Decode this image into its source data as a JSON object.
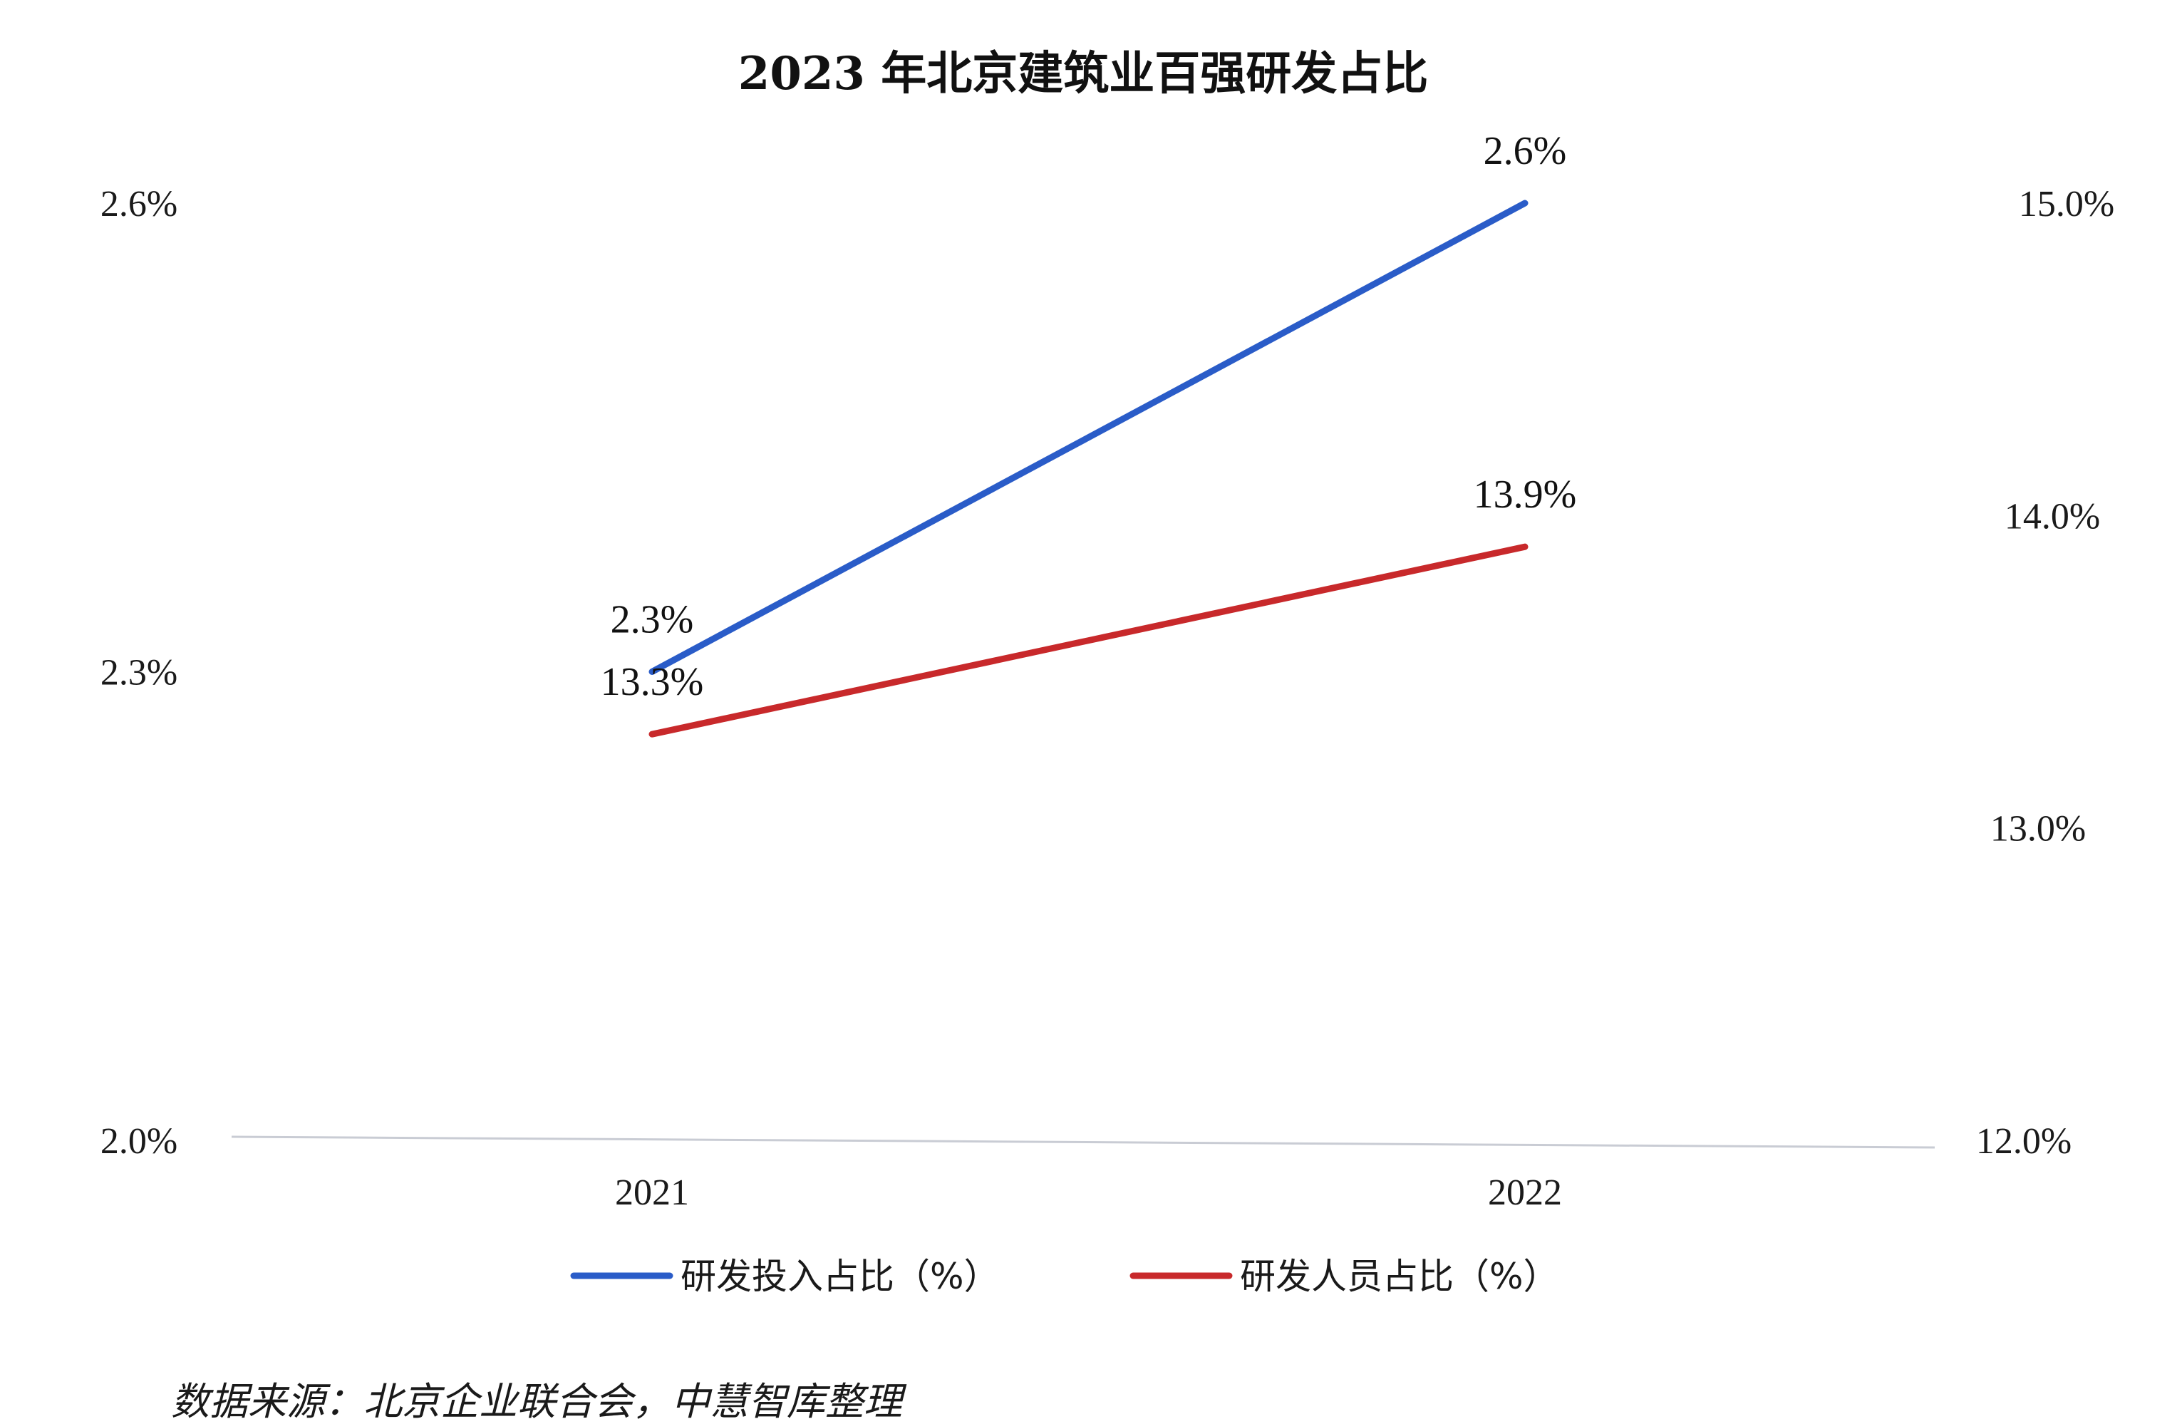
{
  "chart_data": {
    "type": "line",
    "title": "2023 年北京建筑业百强研发占比",
    "categories": [
      "2021",
      "2022"
    ],
    "y_left": {
      "ticks": [
        "2.0%",
        "2.3%",
        "2.6%"
      ],
      "range": [
        2.0,
        2.6
      ]
    },
    "y_right": {
      "ticks": [
        "12.0%",
        "13.0%",
        "14.0%",
        "15.0%"
      ],
      "range": [
        12.0,
        15.0
      ]
    },
    "series": [
      {
        "name": "研发投入占比（%）",
        "axis": "left",
        "color": "#2a5cc8",
        "values": [
          2.3,
          2.6
        ],
        "labels": [
          "2.3%",
          "2.6%"
        ]
      },
      {
        "name": "研发人员占比（%）",
        "axis": "right",
        "color": "#c8292b",
        "values": [
          13.3,
          13.9
        ],
        "labels": [
          "13.3%",
          "13.9%"
        ]
      }
    ],
    "grid": false,
    "legend_position": "bottom",
    "source": "数据来源：北京企业联合会，中慧智库整理"
  }
}
